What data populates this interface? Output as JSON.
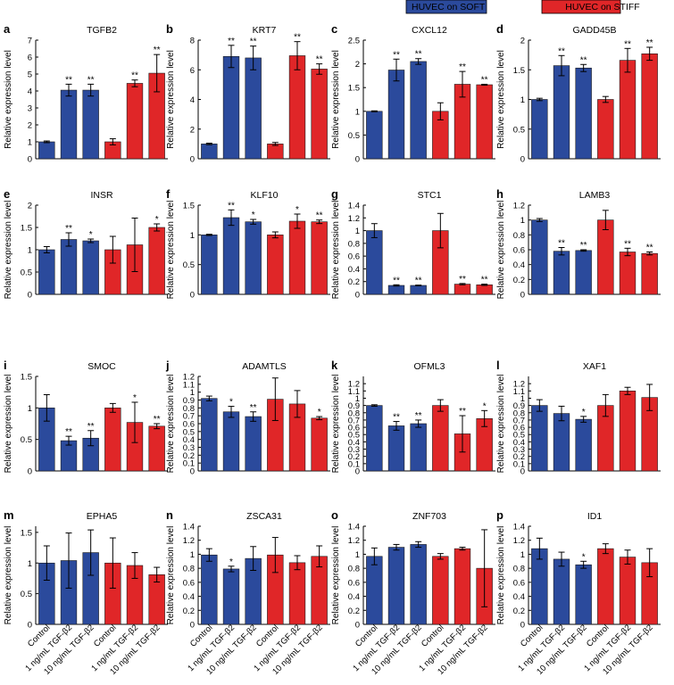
{
  "legend": {
    "items": [
      {
        "label": "HUVEC on SOFT",
        "color": "#2b4a9c"
      },
      {
        "label": "HUVEC on STIFF",
        "color": "#e02628"
      }
    ]
  },
  "colors": {
    "soft": "#2b4a9c",
    "stiff": "#e02628",
    "axis": "#000000"
  },
  "ylabel": "Relative expression level",
  "x_tick_labels": [
    "Control",
    "1 ng/mL TGF-β2",
    "10 ng/mL TGF-β2",
    "Control",
    "1 ng/mL TGF-β2",
    "10 ng/mL TGF-β2"
  ],
  "chart_data": [
    {
      "letter": "a",
      "type": "bar",
      "title": "TGFB2",
      "ylim": [
        0,
        7
      ],
      "yticks": [
        "0",
        "1",
        "2",
        "3",
        "4",
        "5",
        "6",
        "7"
      ],
      "values": [
        1,
        4.05,
        4.05,
        1,
        4.45,
        5.05
      ],
      "errors": [
        0.05,
        0.35,
        0.35,
        0.18,
        0.2,
        1.1
      ],
      "sig": [
        "",
        "**",
        "**",
        "",
        "**",
        "**"
      ]
    },
    {
      "letter": "b",
      "type": "bar",
      "title": "KRT7",
      "ylim": [
        0,
        8
      ],
      "yticks": [
        "0",
        "2",
        "4",
        "6",
        "8"
      ],
      "values": [
        1,
        6.9,
        6.8,
        1,
        6.95,
        6.05
      ],
      "errors": [
        0.05,
        0.75,
        0.8,
        0.1,
        0.95,
        0.35
      ],
      "sig": [
        "",
        "**",
        "**",
        "",
        "**",
        "**"
      ]
    },
    {
      "letter": "c",
      "type": "bar",
      "title": "CXCL12",
      "ylim": [
        0,
        2.5
      ],
      "yticks": [
        "0",
        "0.5",
        "1",
        "1.5",
        "2",
        "2.5"
      ],
      "values": [
        1,
        1.87,
        2.05,
        1,
        1.57,
        1.56
      ],
      "errors": [
        0.01,
        0.23,
        0.06,
        0.18,
        0.27,
        0.01
      ],
      "sig": [
        "",
        "**",
        "**",
        "",
        "**",
        "**"
      ]
    },
    {
      "letter": "d",
      "type": "bar",
      "title": "GADD45B",
      "ylim": [
        0,
        2
      ],
      "yticks": [
        "0",
        "0.5",
        "1",
        "1.5",
        "2"
      ],
      "values": [
        1,
        1.57,
        1.53,
        1,
        1.66,
        1.77
      ],
      "errors": [
        0.02,
        0.17,
        0.06,
        0.05,
        0.2,
        0.11
      ],
      "sig": [
        "",
        "**",
        "**",
        "",
        "**",
        "**"
      ]
    },
    {
      "letter": "e",
      "type": "bar",
      "title": "INSR",
      "ylim": [
        0,
        2
      ],
      "yticks": [
        "0",
        "0.5",
        "1",
        "1.5",
        "2"
      ],
      "values": [
        1,
        1.23,
        1.2,
        1,
        1.11,
        1.5
      ],
      "errors": [
        0.07,
        0.15,
        0.04,
        0.3,
        0.6,
        0.08
      ],
      "sig": [
        "",
        "**",
        "*",
        "",
        "",
        "*"
      ]
    },
    {
      "letter": "f",
      "type": "bar",
      "title": "KLF10",
      "ylim": [
        0,
        1.5
      ],
      "yticks": [
        "0",
        "0.5",
        "1",
        "1.5"
      ],
      "values": [
        1,
        1.29,
        1.22,
        1,
        1.23,
        1.22
      ],
      "errors": [
        0.01,
        0.13,
        0.04,
        0.05,
        0.12,
        0.03
      ],
      "sig": [
        "",
        "**",
        "*",
        "",
        "*",
        "**"
      ]
    },
    {
      "letter": "g",
      "type": "bar",
      "title": "STC1",
      "ylim": [
        0,
        1.4
      ],
      "yticks": [
        "0",
        "0.2",
        "0.4",
        "0.6",
        "0.8",
        "1",
        "1.2",
        "1.4"
      ],
      "values": [
        1,
        0.14,
        0.14,
        1,
        0.16,
        0.15
      ],
      "errors": [
        0.11,
        0.01,
        0.005,
        0.27,
        0.01,
        0.01
      ],
      "sig": [
        "",
        "**",
        "**",
        "",
        "**",
        "**"
      ]
    },
    {
      "letter": "h",
      "type": "bar",
      "title": "LAMB3",
      "ylim": [
        0,
        1.2
      ],
      "yticks": [
        "0",
        "0.2",
        "0.4",
        "0.6",
        "0.8",
        "1",
        "1.2"
      ],
      "values": [
        1,
        0.58,
        0.59,
        1,
        0.57,
        0.55
      ],
      "errors": [
        0.02,
        0.05,
        0.01,
        0.13,
        0.05,
        0.02
      ],
      "sig": [
        "",
        "**",
        "**",
        "",
        "**",
        "**"
      ]
    },
    {
      "letter": "i",
      "type": "bar",
      "title": "SMOC",
      "ylim": [
        0,
        1.5
      ],
      "yticks": [
        "0",
        "0.5",
        "1",
        "1.5"
      ],
      "values": [
        1,
        0.48,
        0.52,
        1,
        0.77,
        0.71
      ],
      "errors": [
        0.21,
        0.07,
        0.12,
        0.07,
        0.32,
        0.04
      ],
      "sig": [
        "",
        "**",
        "**",
        "",
        "*",
        "**"
      ]
    },
    {
      "letter": "j",
      "type": "bar",
      "title": "ADAMTLS",
      "ylim": [
        0,
        1.2
      ],
      "yticks": [
        "0",
        "0.1",
        "0.2",
        "0.3",
        "0.4",
        "0.5",
        "0.6",
        "0.7",
        "0.8",
        "0.9",
        "1",
        "1.1",
        "1.2"
      ],
      "values": [
        0.92,
        0.75,
        0.69,
        0.91,
        0.85,
        0.67
      ],
      "errors": [
        0.03,
        0.07,
        0.06,
        0.27,
        0.17,
        0.02
      ],
      "sig": [
        "",
        "*",
        "**",
        "",
        "",
        "*"
      ]
    },
    {
      "letter": "k",
      "type": "bar",
      "title": "OFML3",
      "ylim": [
        0,
        1.3
      ],
      "yticks": [
        "0",
        "0.1",
        "0.2",
        "0.3",
        "0.4",
        "0.5",
        "0.6",
        "0.7",
        "0.8",
        "0.9",
        "1",
        "1.1",
        "1.2"
      ],
      "values": [
        0.9,
        0.62,
        0.65,
        0.9,
        0.51,
        0.72
      ],
      "errors": [
        0.01,
        0.06,
        0.05,
        0.08,
        0.25,
        0.11
      ],
      "sig": [
        "",
        "**",
        "**",
        "",
        "**",
        "*"
      ]
    },
    {
      "letter": "l",
      "type": "bar",
      "title": "XAF1",
      "ylim": [
        0,
        1.3
      ],
      "yticks": [
        "0",
        "0.1",
        "0.2",
        "0.3",
        "0.4",
        "0.5",
        "0.6",
        "0.7",
        "0.8",
        "0.9",
        "1",
        "1.1",
        "1.2"
      ],
      "values": [
        0.9,
        0.79,
        0.71,
        0.9,
        1.1,
        1.01
      ],
      "errors": [
        0.08,
        0.1,
        0.04,
        0.15,
        0.05,
        0.18
      ],
      "sig": [
        "",
        "",
        "*",
        "",
        "",
        ""
      ]
    },
    {
      "letter": "m",
      "type": "bar",
      "title": "EPHA5",
      "ylim": [
        0,
        1.6
      ],
      "yticks": [
        "0",
        "0.5",
        "1",
        "1.5"
      ],
      "values": [
        1,
        1.04,
        1.17,
        1,
        0.96,
        0.81
      ],
      "errors": [
        0.28,
        0.45,
        0.37,
        0.41,
        0.21,
        0.12
      ],
      "sig": [
        "",
        "",
        "",
        "",
        "",
        ""
      ]
    },
    {
      "letter": "n",
      "type": "bar",
      "title": "ZSCA31",
      "ylim": [
        0,
        1.4
      ],
      "yticks": [
        "0",
        "0.2",
        "0.4",
        "0.6",
        "0.8",
        "1",
        "1.2",
        "1.4"
      ],
      "values": [
        0.99,
        0.79,
        0.94,
        0.99,
        0.88,
        0.97
      ],
      "errors": [
        0.09,
        0.04,
        0.17,
        0.25,
        0.1,
        0.15
      ],
      "sig": [
        "",
        "*",
        "",
        "",
        "",
        ""
      ]
    },
    {
      "letter": "o",
      "type": "bar",
      "title": "ZNF703",
      "ylim": [
        0,
        1.4
      ],
      "yticks": [
        "0",
        "0.2",
        "0.4",
        "0.6",
        "0.8",
        "1",
        "1.2",
        "1.4"
      ],
      "values": [
        0.97,
        1.1,
        1.14,
        0.97,
        1.08,
        0.8
      ],
      "errors": [
        0.12,
        0.04,
        0.04,
        0.04,
        0.02,
        0.55
      ],
      "sig": [
        "",
        "",
        "",
        "",
        "",
        ""
      ]
    },
    {
      "letter": "p",
      "type": "bar",
      "title": "ID1",
      "ylim": [
        0,
        1.4
      ],
      "yticks": [
        "0",
        "0.2",
        "0.4",
        "0.6",
        "0.8",
        "1",
        "1.2",
        "1.4"
      ],
      "values": [
        1.08,
        0.93,
        0.85,
        1.08,
        0.96,
        0.88
      ],
      "errors": [
        0.15,
        0.1,
        0.05,
        0.07,
        0.1,
        0.2
      ],
      "sig": [
        "",
        "",
        "*",
        "",
        "",
        ""
      ]
    }
  ]
}
